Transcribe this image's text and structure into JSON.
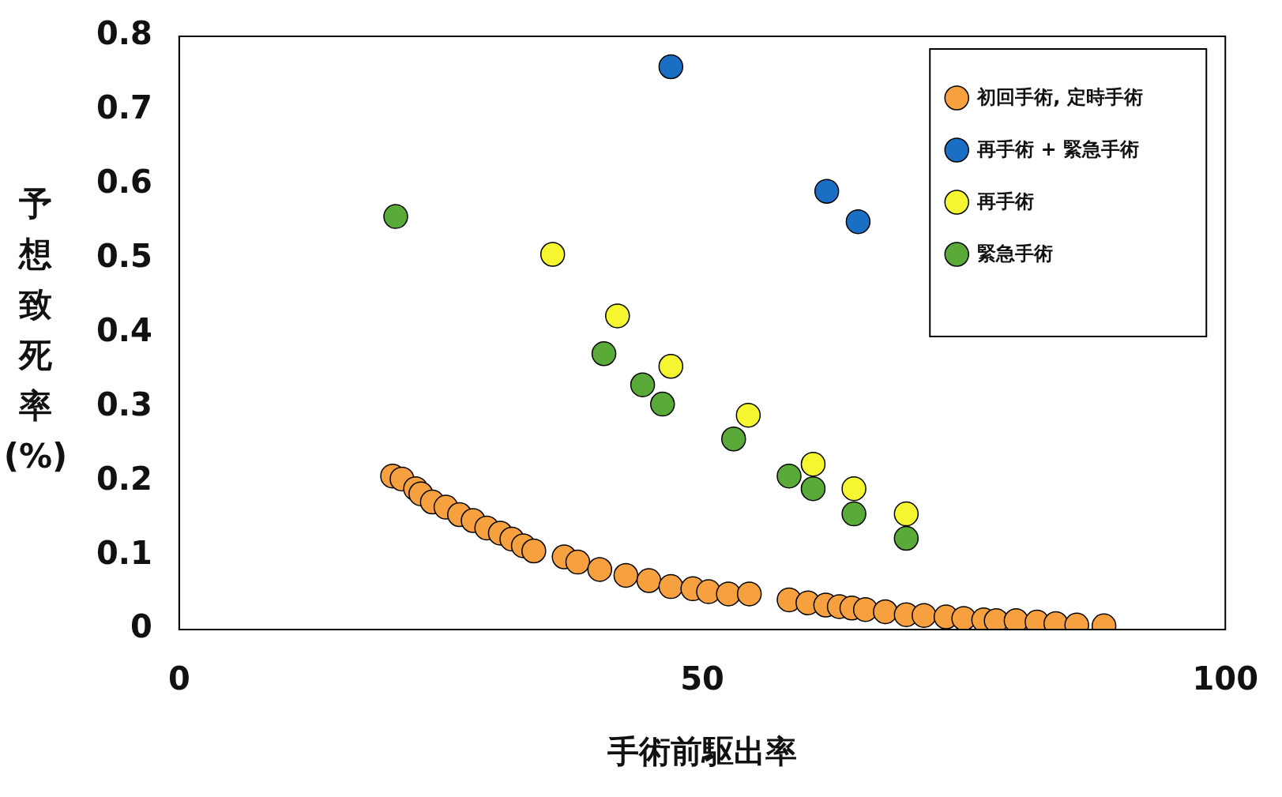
{
  "chart_data": {
    "type": "scatter",
    "xlabel": "手術前駆出率",
    "ylabel": "予想致死率(%)",
    "xlim": [
      0,
      100
    ],
    "xticks": [
      0,
      50,
      100
    ],
    "ylim": [
      0,
      0.8
    ],
    "yticks": [
      0,
      0.1,
      0.2,
      0.3,
      0.4,
      0.5,
      0.6,
      0.7,
      0.8
    ],
    "grid": false,
    "legend": "top right",
    "marker": "circle",
    "series": [
      {
        "name": "初回手術, 定時手術",
        "color": "#f7a040",
        "x": [
          20.4,
          21.3,
          22.6,
          23.1,
          24.2,
          25.5,
          26.8,
          28.1,
          29.4,
          30.7,
          31.8,
          32.9,
          33.9,
          36.8,
          38.1,
          40.2,
          42.7,
          44.9,
          47.0,
          49.1,
          50.6,
          52.5,
          54.5,
          58.3,
          60.1,
          61.8,
          63.1,
          64.3,
          65.6,
          67.5,
          69.5,
          71.2,
          73.3,
          75.0,
          76.9,
          78.1,
          80.0,
          82.0,
          83.8,
          85.8,
          88.4
        ],
        "values": [
          0.207,
          0.203,
          0.19,
          0.183,
          0.172,
          0.165,
          0.155,
          0.147,
          0.137,
          0.13,
          0.122,
          0.113,
          0.106,
          0.098,
          0.091,
          0.081,
          0.073,
          0.066,
          0.058,
          0.055,
          0.051,
          0.048,
          0.048,
          0.04,
          0.036,
          0.033,
          0.031,
          0.029,
          0.027,
          0.024,
          0.02,
          0.019,
          0.017,
          0.015,
          0.013,
          0.012,
          0.012,
          0.01,
          0.008,
          0.006,
          0.005
        ]
      },
      {
        "name": "再手術 + 緊急手術",
        "color": "#1a6fc4",
        "x": [
          47.0,
          61.9,
          64.9
        ],
        "values": [
          0.759,
          0.591,
          0.55
        ]
      },
      {
        "name": "再手術",
        "color": "#f5f530",
        "x": [
          35.7,
          41.9,
          47.0,
          54.4,
          60.6,
          64.5,
          69.5
        ],
        "values": [
          0.506,
          0.423,
          0.355,
          0.289,
          0.223,
          0.19,
          0.156
        ]
      },
      {
        "name": "緊急手術",
        "color": "#5aaa3a",
        "x": [
          20.7,
          40.6,
          44.3,
          46.2,
          53.0,
          58.3,
          60.6,
          64.5,
          69.5
        ],
        "values": [
          0.557,
          0.372,
          0.33,
          0.304,
          0.257,
          0.207,
          0.19,
          0.156,
          0.123
        ]
      }
    ]
  }
}
